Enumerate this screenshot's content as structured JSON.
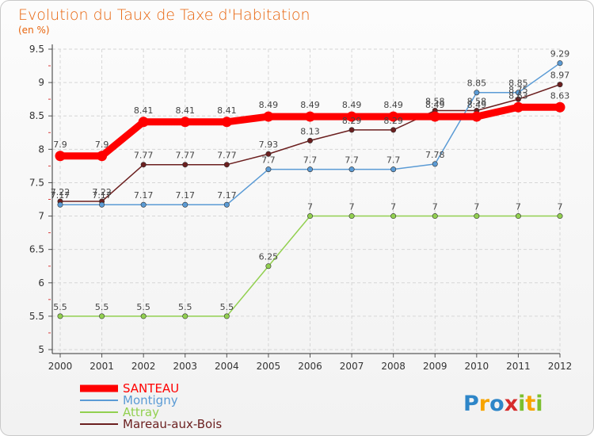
{
  "chart_data": {
    "type": "line",
    "title": "Evolution du Taux de Taxe d'Habitation",
    "subtitle": "(en %)",
    "x": [
      "2000",
      "2001",
      "2002",
      "2003",
      "2004",
      "2005",
      "2006",
      "2007",
      "2008",
      "2009",
      "2010",
      "2011",
      "2012"
    ],
    "ylim": [
      5,
      9.5
    ],
    "yticks": [
      "5",
      "5.5",
      "6",
      "6.5",
      "7",
      "7.5",
      "8",
      "8.5",
      "9",
      "9.5"
    ],
    "grid": true,
    "legend_position": "bottom-left",
    "series": [
      {
        "name": "SANTEAU",
        "color": "#ff0000",
        "values": [
          7.9,
          7.9,
          8.41,
          8.41,
          8.41,
          8.49,
          8.49,
          8.49,
          8.49,
          8.49,
          8.49,
          8.63,
          8.63
        ],
        "labels": [
          "7.9",
          "7.9",
          "8.41",
          "8.41",
          "8.41",
          "8.49",
          "8.49",
          "8.49",
          "8.49",
          "8.49",
          "8.49",
          "8.63",
          "8.63"
        ]
      },
      {
        "name": "Montigny",
        "color": "#5b9bd5",
        "values": [
          7.17,
          7.17,
          7.17,
          7.17,
          7.17,
          7.7,
          7.7,
          7.7,
          7.7,
          7.78,
          8.85,
          8.85,
          9.29
        ],
        "labels": [
          "7.17",
          "7.17",
          "7.17",
          "7.17",
          "7.17",
          "7.7",
          "7.7",
          "7.7",
          "7.7",
          "7.78",
          "8.85",
          "8.85",
          "9.29"
        ]
      },
      {
        "name": "Attray",
        "color": "#92d050",
        "values": [
          5.5,
          5.5,
          5.5,
          5.5,
          5.5,
          6.25,
          7,
          7,
          7,
          7,
          7,
          7,
          7
        ],
        "labels": [
          "5.5",
          "5.5",
          "5.5",
          "5.5",
          "5.5",
          "6.25",
          "7",
          "7",
          "7",
          "7",
          "7",
          "7",
          "7"
        ]
      },
      {
        "name": "Mareau-aux-Bois",
        "color": "#6b1f1f",
        "values": [
          7.22,
          7.22,
          7.77,
          7.77,
          7.77,
          7.93,
          8.13,
          8.29,
          8.29,
          8.58,
          8.58,
          8.75,
          8.97
        ],
        "labels": [
          "7.22",
          "7.22",
          "7.77",
          "7.77",
          "7.77",
          "7.93",
          "8.13",
          "8.29",
          "8.29",
          "8.58",
          "8.58",
          "8.75",
          "8.97"
        ]
      }
    ]
  },
  "logo": {
    "text": "Proxiti"
  }
}
